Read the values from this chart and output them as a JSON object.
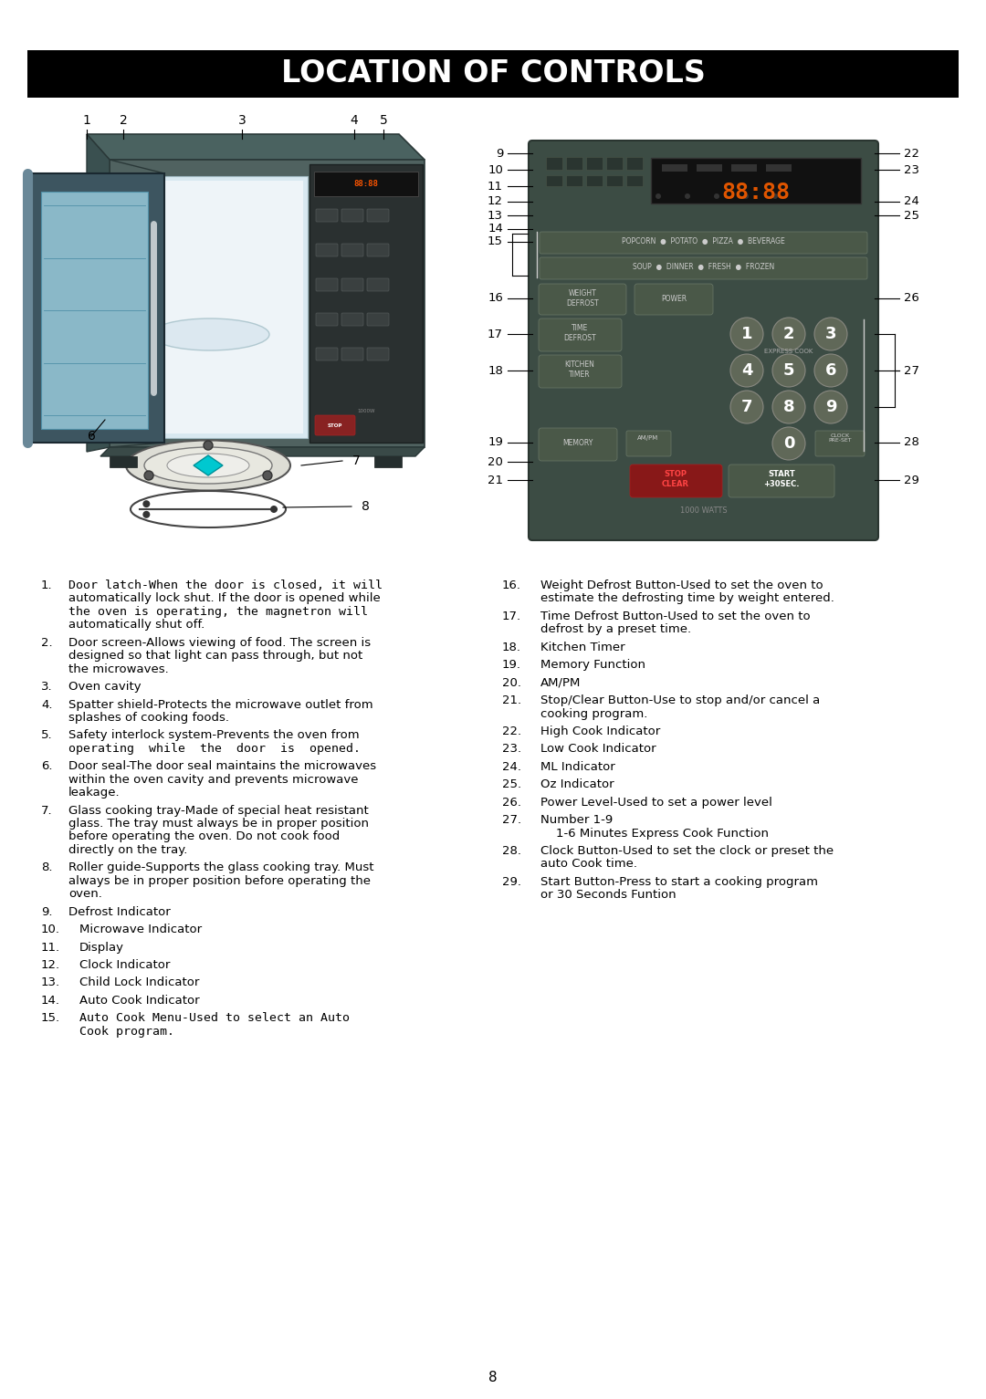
{
  "title": "LOCATION OF CONTROLS",
  "title_bg": "#000000",
  "title_color": "#ffffff",
  "title_fontsize": 24,
  "page_bg": "#ffffff",
  "page_number": "8",
  "left_column_items": [
    {
      "num": "1.",
      "text_parts": [
        {
          "t": "Door latch-When the door is closed, it will",
          "mono": true
        },
        {
          "t": "automatically lock shut. If the door is opened while",
          "mono": false
        },
        {
          "t": "the oven is operating, the magnetron will",
          "mono": true
        },
        {
          "t": "automatically shut off.",
          "mono": false
        }
      ]
    },
    {
      "num": "2.",
      "text_parts": [
        {
          "t": "Door screen-Allows viewing of food. The screen is",
          "mono": false
        },
        {
          "t": "designed so that light can pass through, but not",
          "mono": false
        },
        {
          "t": "the microwaves.",
          "mono": false
        }
      ]
    },
    {
      "num": "3.",
      "text_parts": [
        {
          "t": "Oven cavity",
          "mono": false
        }
      ]
    },
    {
      "num": "4.",
      "text_parts": [
        {
          "t": "Spatter shield-Protects the microwave outlet from",
          "mono": false
        },
        {
          "t": "splashes of cooking foods.",
          "mono": false
        }
      ]
    },
    {
      "num": "5.",
      "text_parts": [
        {
          "t": "Safety interlock system-Prevents the oven from",
          "mono": false
        },
        {
          "t": "operating  while  the  door  is  opened.",
          "mono": true
        }
      ]
    },
    {
      "num": "6.",
      "text_parts": [
        {
          "t": "Door seal-The door seal maintains the microwaves",
          "mono": false
        },
        {
          "t": "within the oven cavity and prevents microwave",
          "mono": false
        },
        {
          "t": "leakage.",
          "mono": false
        }
      ]
    },
    {
      "num": "7.",
      "text_parts": [
        {
          "t": "Glass cooking tray-Made of special heat resistant",
          "mono": false
        },
        {
          "t": "glass. The tray must always be in proper position",
          "mono": false
        },
        {
          "t": "before operating the oven. Do not cook food",
          "mono": false
        },
        {
          "t": "directly on the tray.",
          "mono": false
        }
      ]
    },
    {
      "num": "8.",
      "text_parts": [
        {
          "t": "Roller guide-Supports the glass cooking tray. Must",
          "mono": false
        },
        {
          "t": "always be in proper position before operating the",
          "mono": false
        },
        {
          "t": "oven.",
          "mono": false
        }
      ]
    },
    {
      "num": "9.",
      "text_parts": [
        {
          "t": "Defrost Indicator",
          "mono": false
        }
      ]
    },
    {
      "num": "10.",
      "text_parts": [
        {
          "t": "Microwave Indicator",
          "mono": false
        }
      ]
    },
    {
      "num": "11.",
      "text_parts": [
        {
          "t": "Display",
          "mono": false
        }
      ]
    },
    {
      "num": "12.",
      "text_parts": [
        {
          "t": "Clock Indicator",
          "mono": false
        }
      ]
    },
    {
      "num": "13.",
      "text_parts": [
        {
          "t": "Child Lock Indicator",
          "mono": false
        }
      ]
    },
    {
      "num": "14.",
      "text_parts": [
        {
          "t": "Auto Cook Indicator",
          "mono": false
        }
      ]
    },
    {
      "num": "15.",
      "text_parts": [
        {
          "t": "Auto Cook Menu-Used to select an Auto",
          "mono": true
        },
        {
          "t": "Cook program.",
          "mono": true
        }
      ]
    }
  ],
  "right_column_items": [
    {
      "num": "16.",
      "text_parts": [
        {
          "t": "Weight Defrost Button-Used to set the oven to",
          "mono": false
        },
        {
          "t": "estimate the defrosting time by weight entered.",
          "mono": false
        }
      ]
    },
    {
      "num": "17.",
      "text_parts": [
        {
          "t": "Time Defrost Button-Used to set the oven to",
          "mono": false
        },
        {
          "t": "defrost by a preset time.",
          "mono": false
        }
      ]
    },
    {
      "num": "18.",
      "text_parts": [
        {
          "t": "Kitchen Timer",
          "mono": false
        }
      ]
    },
    {
      "num": "19.",
      "text_parts": [
        {
          "t": "Memory Function",
          "mono": false
        }
      ]
    },
    {
      "num": "20.",
      "text_parts": [
        {
          "t": "AM/PM",
          "mono": false
        }
      ]
    },
    {
      "num": "21.",
      "text_parts": [
        {
          "t": "Stop/Clear Button-Use to stop and/or cancel a",
          "mono": false
        },
        {
          "t": "cooking program.",
          "mono": false
        }
      ]
    },
    {
      "num": "22.",
      "text_parts": [
        {
          "t": "High Cook Indicator",
          "mono": false
        }
      ]
    },
    {
      "num": "23.",
      "text_parts": [
        {
          "t": "Low Cook Indicator",
          "mono": false
        }
      ]
    },
    {
      "num": "24.",
      "text_parts": [
        {
          "t": "ML Indicator",
          "mono": false
        }
      ]
    },
    {
      "num": "25.",
      "text_parts": [
        {
          "t": "Oz Indicator",
          "mono": false
        }
      ]
    },
    {
      "num": "26.",
      "text_parts": [
        {
          "t": "Power Level-Used to set a power level",
          "mono": false
        }
      ]
    },
    {
      "num": "27.",
      "text_parts": [
        {
          "t": "Number 1-9",
          "mono": false
        },
        {
          "t": "    1-6 Minutes Express Cook Function",
          "mono": false
        }
      ]
    },
    {
      "num": "28.",
      "text_parts": [
        {
          "t": "Clock Button-Used to set the clock or preset the",
          "mono": false
        },
        {
          "t": "auto Cook time.",
          "mono": false
        }
      ]
    },
    {
      "num": "29.",
      "text_parts": [
        {
          "t": "Start Button-Press to start a cooking program",
          "mono": false
        },
        {
          "t": "or 30 Seconds Funtion",
          "mono": false
        }
      ]
    }
  ]
}
